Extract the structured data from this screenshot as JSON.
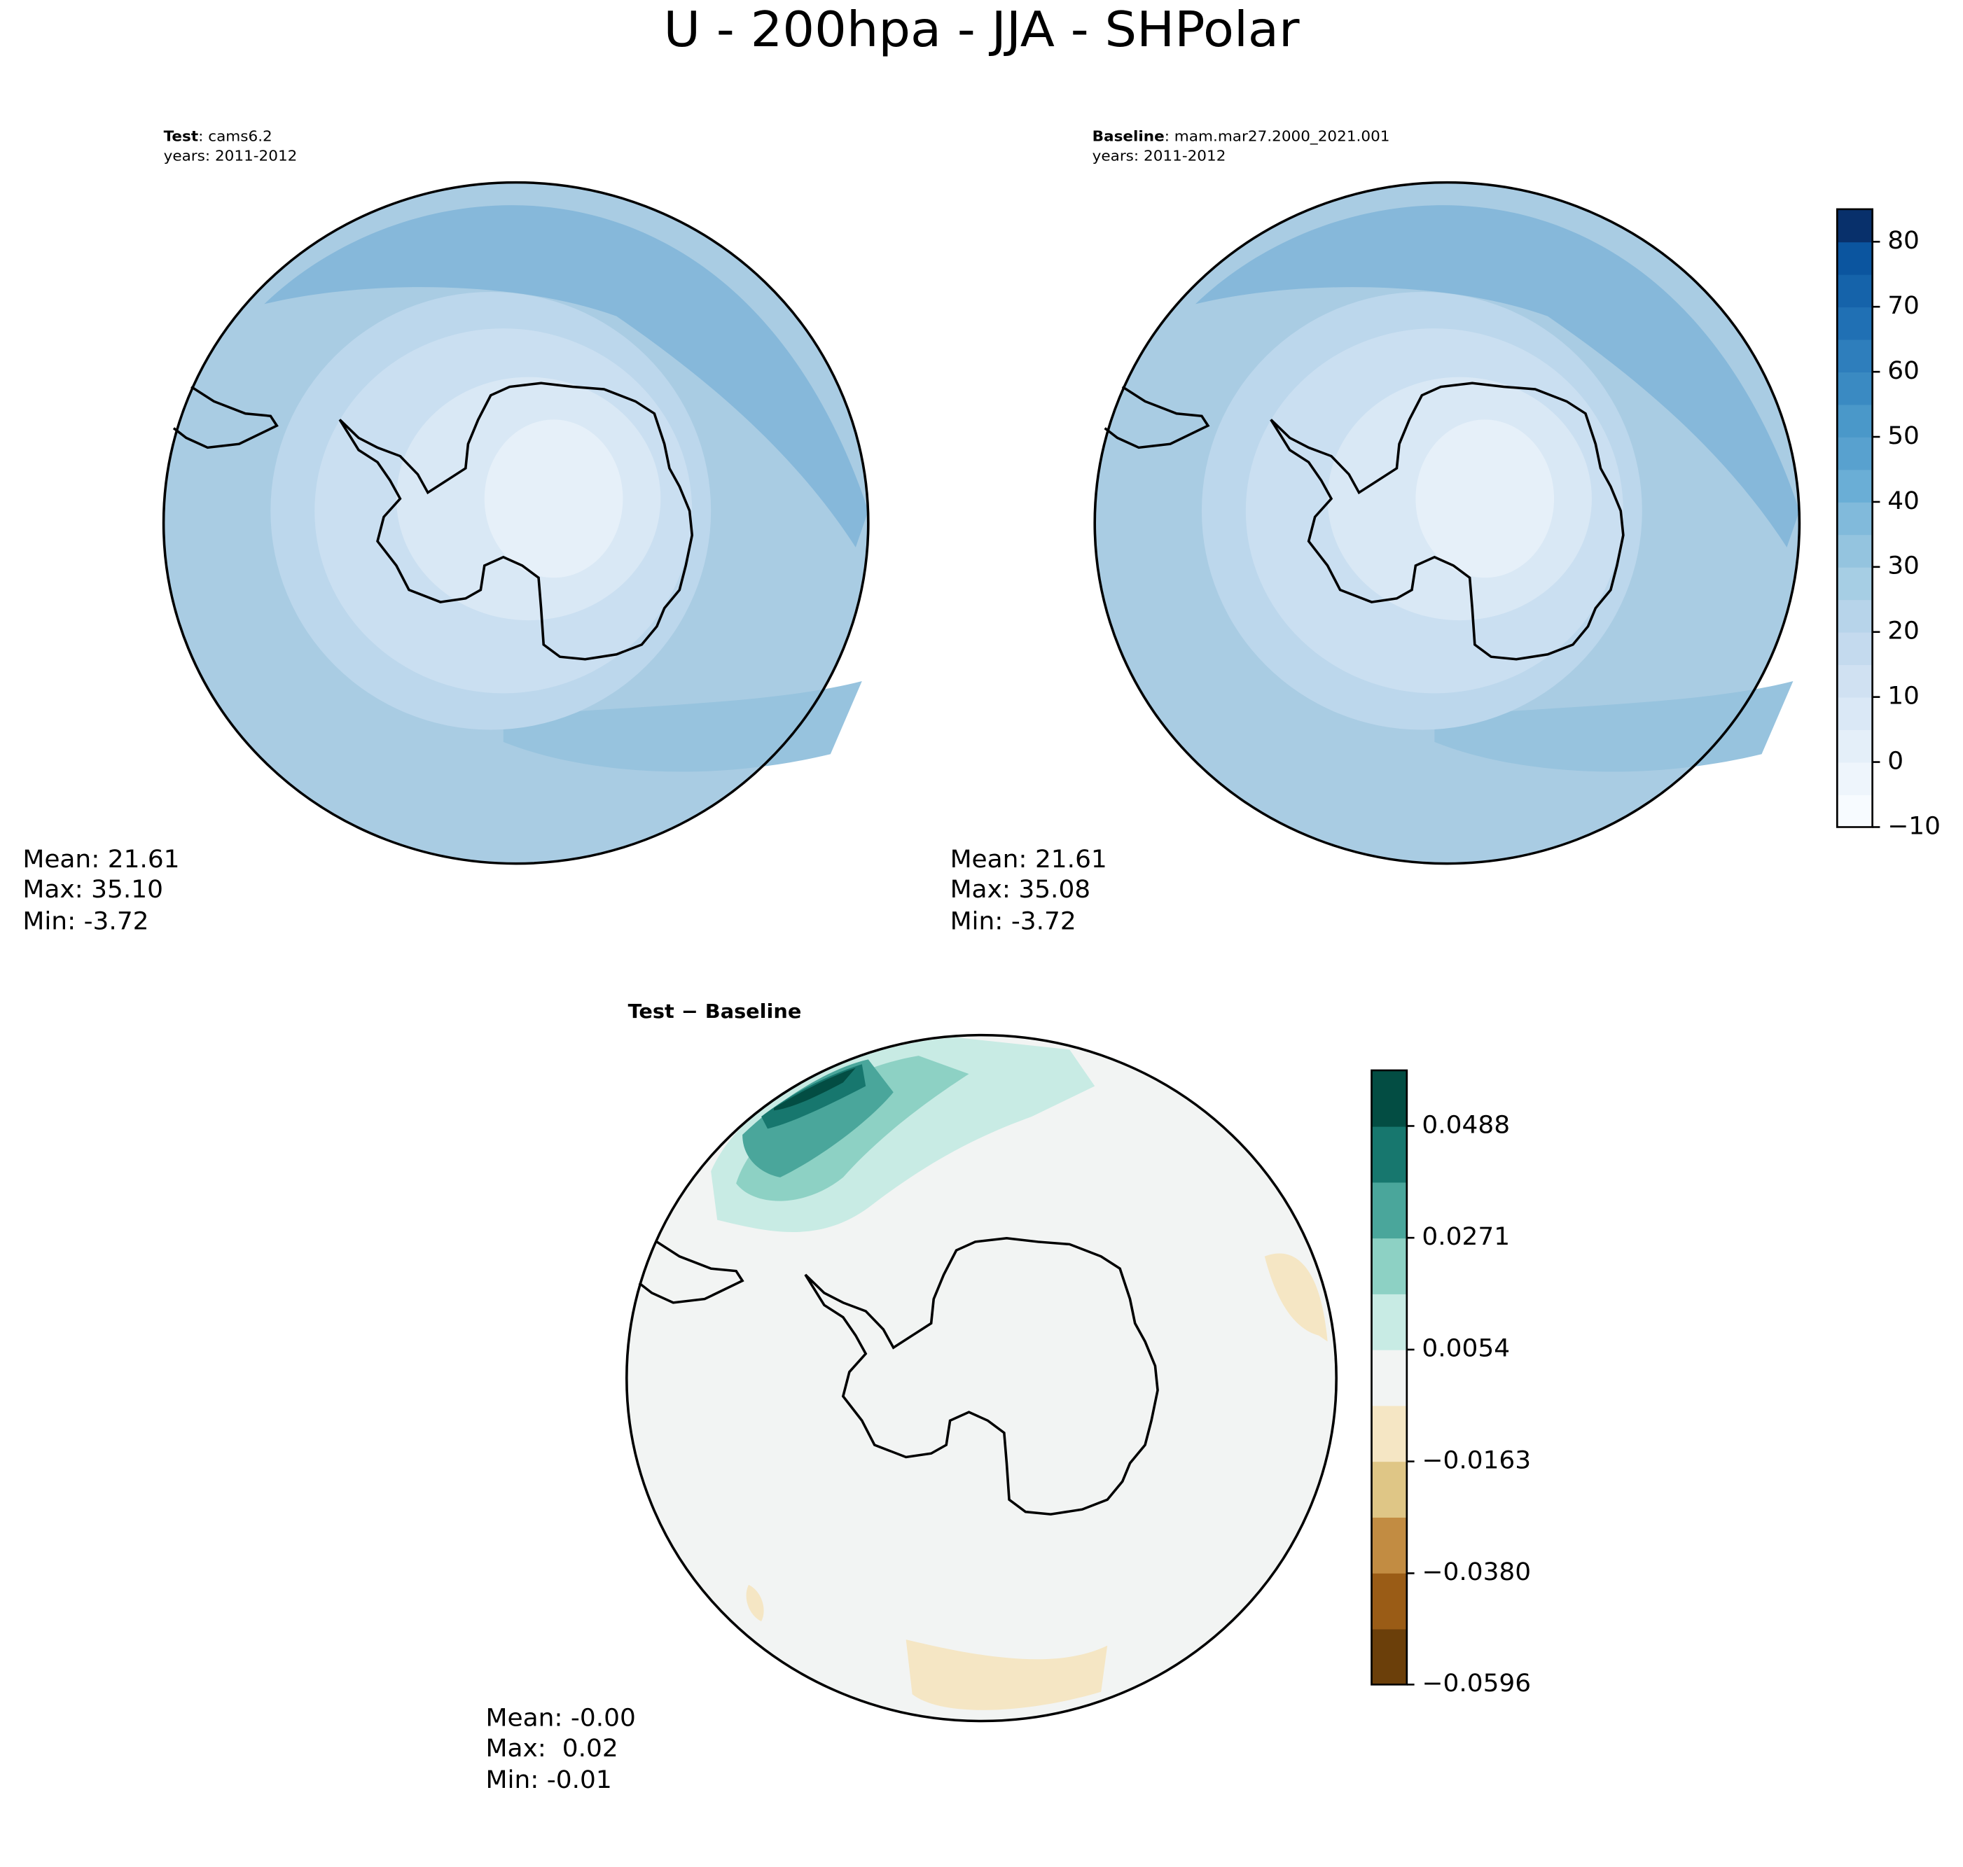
{
  "title": "U - 200hpa - JJA - SHPolar",
  "panels": [
    {
      "label": "Test",
      "case": ": cams6.2",
      "years": "years: 2011-2012",
      "stats": [
        "Mean: 21.61",
        "Max: 35.10",
        "Min: -3.72"
      ]
    },
    {
      "label": "Baseline",
      "case": ": mam.mar27.2000_2021.001",
      "years": "years: 2011-2012",
      "stats": [
        "Mean: 21.61",
        "Max: 35.08",
        "Min: -3.72"
      ]
    },
    {
      "label": "Test − Baseline",
      "stats": [
        "Mean: -0.00",
        "Max:  0.02",
        "Min: -0.01"
      ]
    }
  ],
  "colorbars": [
    {
      "ylim": [
        -10,
        85
      ],
      "yticks": [
        {
          "value": -10,
          "label": "−10"
        },
        0,
        10,
        20,
        30,
        40,
        50,
        60,
        70,
        80
      ],
      "colors": [
        "#f7fbff",
        "#eef5fc",
        "#e4eff9",
        "#dae8f6",
        "#d0e1f2",
        "#c4daee",
        "#b7d4ea",
        "#a6cee4",
        "#94c4df",
        "#81badb",
        "#6aaed6",
        "#58a1cf",
        "#4a98c9",
        "#3a8ac2",
        "#2e7ebc",
        "#2070b4",
        "#1563aa",
        "#0b559f",
        "#08306b"
      ]
    },
    {
      "ylim": [
        -0.0596,
        0.0596
      ],
      "yticks": [
        {
          "value": -0.0596,
          "label": "−0.0596"
        },
        {
          "value": -0.038,
          "label": "−0.0380"
        },
        {
          "value": -0.0163,
          "label": "−0.0163"
        },
        0.0054,
        0.0271,
        0.0488
      ],
      "colors": [
        "#6b3f0a",
        "#9a5c16",
        "#c28c42",
        "#dfc686",
        "#f5e6c4",
        "#f2f4f3",
        "#c8ebe4",
        "#8dd1c4",
        "#4aa69b",
        "#17776e",
        "#034d43"
      ]
    }
  ]
}
